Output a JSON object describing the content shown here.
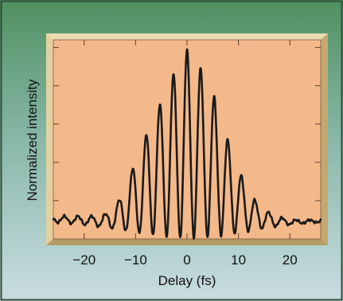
{
  "chart_data": {
    "type": "line",
    "title": "",
    "xlabel": "Delay (fs)",
    "ylabel": "Normalized intensity",
    "xlim": [
      -26,
      26
    ],
    "ylim": [
      0,
      1.05
    ],
    "grid": false,
    "x_ticks": [
      -20,
      -10,
      0,
      10,
      20
    ],
    "x_tick_labels": [
      "−20",
      "−10",
      "0",
      "10",
      "20"
    ],
    "y_tick_count": 5,
    "y_tick_labels_visible": false,
    "background_color": "#f4b98a",
    "frame_color": "#d9c28e",
    "line_color": "#1a1a1a",
    "figure_background_top": "#4f9060",
    "figure_background_bottom": "#c9dde1",
    "baseline": 0.095,
    "oscillation_period_fs": 2.65,
    "envelope_width_fs": 11.5,
    "peaks": [
      {
        "x": -21.2,
        "y": 0.12
      },
      {
        "x": -18.6,
        "y": 0.12
      },
      {
        "x": -15.9,
        "y": 0.13
      },
      {
        "x": -13.3,
        "y": 0.2
      },
      {
        "x": -10.6,
        "y": 0.37
      },
      {
        "x": -7.95,
        "y": 0.55
      },
      {
        "x": -5.3,
        "y": 0.71
      },
      {
        "x": -2.65,
        "y": 0.87
      },
      {
        "x": 0.0,
        "y": 1.0
      },
      {
        "x": 2.65,
        "y": 0.9
      },
      {
        "x": 5.3,
        "y": 0.75
      },
      {
        "x": 7.95,
        "y": 0.52
      },
      {
        "x": 10.6,
        "y": 0.33
      },
      {
        "x": 13.3,
        "y": 0.2
      },
      {
        "x": 15.9,
        "y": 0.14
      },
      {
        "x": 18.6,
        "y": 0.11
      },
      {
        "x": 21.2,
        "y": 0.1
      }
    ]
  }
}
